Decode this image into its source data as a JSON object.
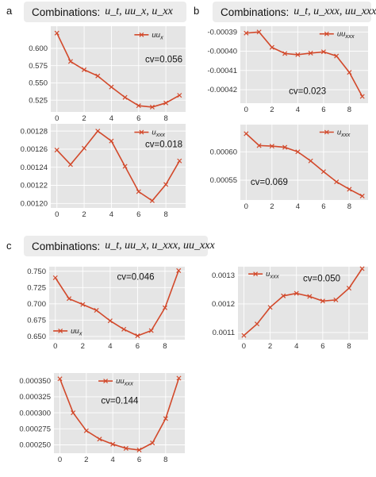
{
  "panels": [
    {
      "letter": "a",
      "combination_label": "Combinations:",
      "combination_terms": "u_t, uu_x, u_xx"
    },
    {
      "letter": "b",
      "combination_label": "Combinations:",
      "combination_terms": "u_t, u_xxx, uu_xxx"
    },
    {
      "letter": "c",
      "combination_label": "Combinations:",
      "combination_terms": "u_t, uu_x, u_xxx, uu_xxx"
    }
  ],
  "colors": {
    "line": "#d2492b",
    "plot_bg": "#e5e5e5",
    "grid": "#ffffff"
  },
  "chart_data": [
    {
      "type": "line",
      "panel": "a",
      "legend": "uu_x",
      "cv": "cv=0.056",
      "legend_position": "top-right",
      "x": [
        0,
        1,
        2,
        3,
        4,
        5,
        6,
        7,
        8,
        9
      ],
      "y": [
        0.622,
        0.581,
        0.569,
        0.56,
        0.544,
        0.529,
        0.517,
        0.515,
        0.521,
        0.532
      ],
      "ylim": [
        0.508,
        0.632
      ],
      "yticks": [
        0.525,
        0.55,
        0.575,
        0.6
      ],
      "ytick_labels": [
        "0.525",
        "0.550",
        "0.575",
        "0.600"
      ],
      "xticks": [
        0,
        2,
        4,
        6,
        8
      ],
      "xtick_labels": [
        "0",
        "2",
        "4",
        "6",
        "8"
      ],
      "xlim": [
        -0.45,
        9.45
      ],
      "grid": true
    },
    {
      "type": "line",
      "panel": "a",
      "legend": "u_xxx",
      "cv": "cv=0.018",
      "legend_position": "top-right",
      "x": [
        0,
        1,
        2,
        3,
        4,
        5,
        6,
        7,
        8,
        9
      ],
      "y": [
        0.001259,
        0.001243,
        0.001261,
        0.00128,
        0.001269,
        0.001241,
        0.001213,
        0.001203,
        0.001221,
        0.001247
      ],
      "ylim": [
        0.001195,
        0.001288
      ],
      "yticks": [
        0.0012,
        0.00122,
        0.00124,
        0.00126,
        0.00128
      ],
      "ytick_labels": [
        "0.00120",
        "0.00122",
        "0.00124",
        "0.00126",
        "0.00128"
      ],
      "xticks": [
        0,
        2,
        4,
        6,
        8
      ],
      "xtick_labels": [
        "0",
        "2",
        "4",
        "6",
        "8"
      ],
      "xlim": [
        -0.45,
        9.45
      ],
      "grid": true
    },
    {
      "type": "line",
      "panel": "b",
      "legend": "uu_xxx",
      "cv": "cv=0.023",
      "legend_position": "top-right",
      "x": [
        0,
        1,
        2,
        3,
        4,
        5,
        6,
        7,
        8,
        9
      ],
      "y": [
        -0.0003906,
        -0.00039,
        -0.000398,
        -0.0004012,
        -0.0004018,
        -0.000401,
        -0.0004003,
        -0.0004025,
        -0.000411,
        -0.0004235
      ],
      "ylim": [
        -0.000427,
        -0.000387
      ],
      "yticks": [
        -0.00042,
        -0.00041,
        -0.0004,
        -0.00039
      ],
      "ytick_labels": [
        "-0.00042",
        "-0.00041",
        "-0.00040",
        "-0.00039"
      ],
      "xticks": [
        0,
        2,
        4,
        6,
        8
      ],
      "xtick_labels": [
        "0",
        "2",
        "4",
        "6",
        "8"
      ],
      "xlim": [
        -0.45,
        9.45
      ],
      "grid": true
    },
    {
      "type": "line",
      "panel": "b",
      "legend": "u_xxx",
      "cv": "cv=0.069",
      "legend_position": "top-right",
      "x": [
        0,
        1,
        2,
        3,
        4,
        5,
        6,
        7,
        8,
        9
      ],
      "y": [
        0.000632,
        0.000611,
        0.00061,
        0.000608,
        0.0006,
        0.000584,
        0.000565,
        0.000547,
        0.000534,
        0.000522
      ],
      "ylim": [
        0.000515,
        0.000648
      ],
      "yticks": [
        0.00055,
        0.0006
      ],
      "ytick_labels": [
        "0.00055",
        "0.00060"
      ],
      "xticks": [
        0,
        2,
        4,
        6,
        8
      ],
      "xtick_labels": [
        "0",
        "2",
        "4",
        "6",
        "8"
      ],
      "xlim": [
        -0.45,
        9.45
      ],
      "grid": true
    },
    {
      "type": "line",
      "panel": "c",
      "legend": "uu_x",
      "cv": "cv=0.046",
      "legend_position": "bottom-left",
      "x": [
        0,
        1,
        2,
        3,
        4,
        5,
        6,
        7,
        8,
        9
      ],
      "y": [
        0.74,
        0.708,
        0.699,
        0.69,
        0.674,
        0.661,
        0.651,
        0.659,
        0.694,
        0.751
      ],
      "ylim": [
        0.645,
        0.757
      ],
      "yticks": [
        0.65,
        0.675,
        0.7,
        0.725,
        0.75
      ],
      "ytick_labels": [
        "0.650",
        "0.675",
        "0.700",
        "0.725",
        "0.750"
      ],
      "xticks": [
        0,
        2,
        4,
        6,
        8
      ],
      "xtick_labels": [
        "0",
        "2",
        "4",
        "6",
        "8"
      ],
      "xlim": [
        -0.45,
        9.45
      ],
      "grid": true
    },
    {
      "type": "line",
      "panel": "c",
      "legend": "u_xxx",
      "cv": "cv=0.050",
      "legend_position": "top-left",
      "x": [
        0,
        1,
        2,
        3,
        4,
        5,
        6,
        7,
        8,
        9
      ],
      "y": [
        0.00109,
        0.00113,
        0.001188,
        0.001228,
        0.001237,
        0.001226,
        0.00121,
        0.001214,
        0.001255,
        0.001323
      ],
      "ylim": [
        0.001075,
        0.00133
      ],
      "yticks": [
        0.0011,
        0.0012,
        0.0013
      ],
      "ytick_labels": [
        "0.0011",
        "0.0012",
        "0.0013"
      ],
      "xticks": [
        0,
        2,
        4,
        6,
        8
      ],
      "xtick_labels": [
        "0",
        "2",
        "4",
        "6",
        "8"
      ],
      "xlim": [
        -0.45,
        9.45
      ],
      "grid": true
    },
    {
      "type": "line",
      "panel": "c",
      "legend": "uu_xxx",
      "cv": "cv=0.144",
      "legend_position": "top-center",
      "x": [
        0,
        1,
        2,
        3,
        4,
        5,
        6,
        7,
        8,
        9
      ],
      "y": [
        0.000353,
        0.0003,
        0.000272,
        0.000259,
        0.000251,
        0.0002445,
        0.000242,
        0.000253,
        0.000291,
        0.000354
      ],
      "ylim": [
        0.000237,
        0.000362
      ],
      "yticks": [
        0.00025,
        0.000275,
        0.0003,
        0.000325,
        0.00035
      ],
      "ytick_labels": [
        "0.000250",
        "0.000275",
        "0.000300",
        "0.000325",
        "0.000350"
      ],
      "xticks": [
        0,
        2,
        4,
        6,
        8
      ],
      "xtick_labels": [
        "0",
        "2",
        "4",
        "6",
        "8"
      ],
      "xlim": [
        -0.45,
        9.45
      ],
      "grid": true
    }
  ]
}
